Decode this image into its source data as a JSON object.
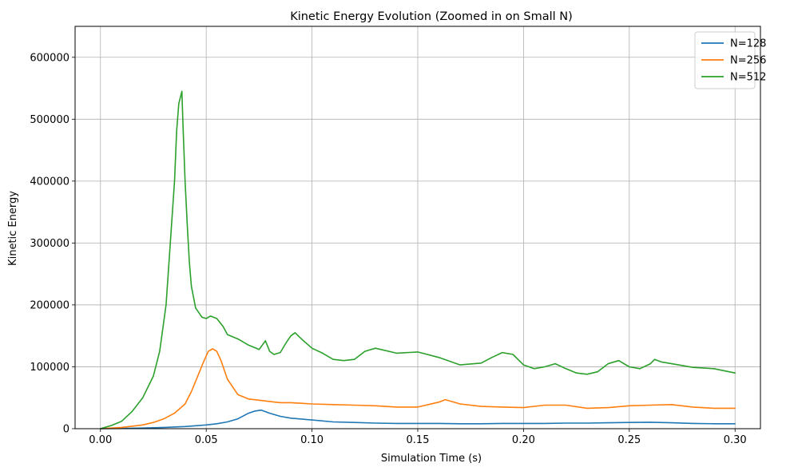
{
  "chart_data": {
    "type": "line",
    "title": "Kinetic Energy Evolution (Zoomed in on Small N)",
    "xlabel": "Simulation Time (s)",
    "ylabel": "Kinetic Energy",
    "xlim": [
      -0.012,
      0.312
    ],
    "ylim": [
      0,
      650000
    ],
    "xticks": [
      0.0,
      0.05,
      0.1,
      0.15,
      0.2,
      0.25,
      0.3
    ],
    "xtick_labels": [
      "0.00",
      "0.05",
      "0.10",
      "0.15",
      "0.20",
      "0.25",
      "0.30"
    ],
    "yticks": [
      0,
      100000,
      200000,
      300000,
      400000,
      500000,
      600000
    ],
    "ytick_labels": [
      "0",
      "100000",
      "200000",
      "300000",
      "400000",
      "500000",
      "600000"
    ],
    "grid": true,
    "legend_position": "top-right",
    "series": [
      {
        "name": "N=128",
        "color": "#1f77b4",
        "x": [
          0.0,
          0.01,
          0.02,
          0.03,
          0.04,
          0.05,
          0.055,
          0.06,
          0.065,
          0.07,
          0.073,
          0.076,
          0.08,
          0.085,
          0.09,
          0.1,
          0.11,
          0.12,
          0.13,
          0.14,
          0.15,
          0.16,
          0.17,
          0.18,
          0.19,
          0.2,
          0.21,
          0.22,
          0.23,
          0.24,
          0.25,
          0.26,
          0.27,
          0.28,
          0.29,
          0.3
        ],
        "y": [
          0,
          400,
          1000,
          2000,
          3500,
          6000,
          8000,
          11000,
          16000,
          25000,
          28500,
          30000,
          25000,
          20000,
          17000,
          14000,
          11000,
          10000,
          9000,
          8500,
          8500,
          8500,
          8000,
          8000,
          8500,
          8500,
          8500,
          9000,
          9000,
          9500,
          10000,
          10500,
          9500,
          8500,
          8000,
          8000
        ]
      },
      {
        "name": "N=256",
        "color": "#ff7f0e",
        "x": [
          0.0,
          0.01,
          0.02,
          0.025,
          0.03,
          0.035,
          0.04,
          0.043,
          0.046,
          0.049,
          0.051,
          0.053,
          0.055,
          0.057,
          0.06,
          0.065,
          0.07,
          0.075,
          0.08,
          0.085,
          0.09,
          0.1,
          0.11,
          0.12,
          0.13,
          0.14,
          0.15,
          0.16,
          0.163,
          0.17,
          0.18,
          0.19,
          0.2,
          0.21,
          0.22,
          0.23,
          0.24,
          0.25,
          0.26,
          0.27,
          0.28,
          0.29,
          0.3
        ],
        "y": [
          0,
          2000,
          6000,
          10000,
          16000,
          25000,
          40000,
          60000,
          85000,
          110000,
          125000,
          129000,
          125000,
          110000,
          80000,
          55000,
          48000,
          46000,
          44000,
          42000,
          42000,
          40000,
          39000,
          38000,
          37000,
          35000,
          35000,
          43000,
          47000,
          40000,
          36000,
          35000,
          34000,
          38000,
          38000,
          33000,
          34000,
          37000,
          38000,
          39000,
          35000,
          33000,
          33000
        ]
      },
      {
        "name": "N=512",
        "color": "#2ca02c",
        "x": [
          0.0,
          0.005,
          0.01,
          0.015,
          0.02,
          0.025,
          0.028,
          0.031,
          0.033,
          0.035,
          0.036,
          0.037,
          0.0385,
          0.039,
          0.04,
          0.041,
          0.042,
          0.043,
          0.045,
          0.048,
          0.05,
          0.052,
          0.055,
          0.058,
          0.06,
          0.065,
          0.07,
          0.075,
          0.078,
          0.08,
          0.082,
          0.085,
          0.088,
          0.09,
          0.092,
          0.095,
          0.1,
          0.105,
          0.11,
          0.115,
          0.12,
          0.125,
          0.13,
          0.14,
          0.15,
          0.16,
          0.17,
          0.18,
          0.185,
          0.19,
          0.195,
          0.2,
          0.205,
          0.21,
          0.215,
          0.22,
          0.225,
          0.23,
          0.235,
          0.24,
          0.245,
          0.25,
          0.255,
          0.26,
          0.262,
          0.265,
          0.27,
          0.28,
          0.29,
          0.3
        ],
        "y": [
          0,
          5000,
          12000,
          28000,
          50000,
          85000,
          125000,
          200000,
          300000,
          400000,
          480000,
          525000,
          545000,
          490000,
          400000,
          330000,
          270000,
          230000,
          195000,
          180000,
          178000,
          182000,
          178000,
          165000,
          152000,
          145000,
          135000,
          128000,
          142000,
          125000,
          120000,
          123000,
          140000,
          150000,
          155000,
          145000,
          130000,
          122000,
          112000,
          110000,
          112000,
          125000,
          130000,
          122000,
          124000,
          115000,
          103000,
          106000,
          115000,
          123000,
          120000,
          103000,
          97000,
          100000,
          105000,
          97000,
          90000,
          88000,
          92000,
          105000,
          110000,
          100000,
          97000,
          105000,
          112000,
          108000,
          105000,
          99000,
          97000,
          90000
        ]
      }
    ]
  }
}
